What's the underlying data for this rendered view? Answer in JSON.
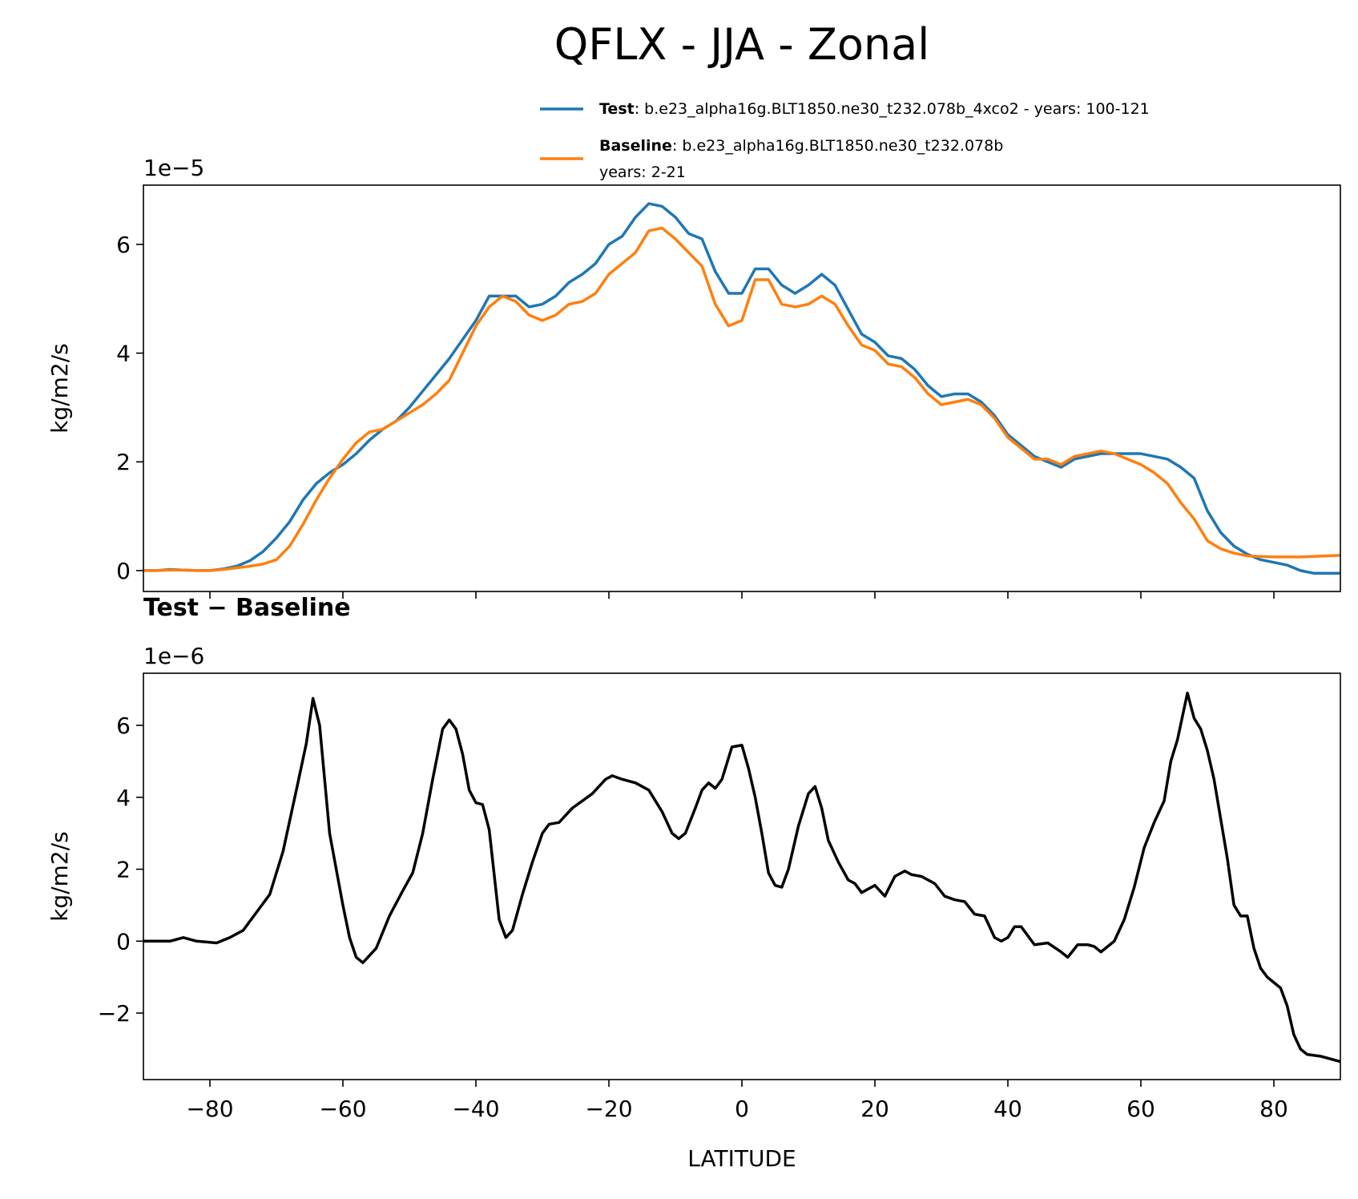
{
  "title": "QFLX - JJA - Zonal",
  "chart_data": [
    {
      "type": "line",
      "ylabel": "kg/m2/s",
      "y_offset_text": "1e−5",
      "xlim": [
        -90,
        90
      ],
      "xticks": [
        {
          "value": -80,
          "label": "−80"
        },
        {
          "value": -60,
          "label": "−60"
        },
        {
          "value": -40,
          "label": "−40"
        },
        {
          "value": -20,
          "label": "−20"
        },
        0,
        20,
        40,
        60,
        80
      ],
      "show_xtick_labels": false,
      "ylim": [
        -0.385,
        7.09
      ],
      "yticks": [
        0,
        2,
        4,
        6
      ],
      "legend": "above-right",
      "x": [
        -90,
        -88,
        -86,
        -84,
        -82,
        -80,
        -78,
        -76,
        -74,
        -72,
        -70,
        -68,
        -66,
        -64,
        -62,
        -60,
        -58,
        -56,
        -54,
        -52,
        -50,
        -48,
        -46,
        -44,
        -42,
        -40,
        -38,
        -36,
        -34,
        -32,
        -30,
        -28,
        -26,
        -24,
        -22,
        -20,
        -18,
        -16,
        -14,
        -12,
        -10,
        -8,
        -6,
        -4,
        -2,
        0,
        2,
        4,
        6,
        8,
        10,
        12,
        14,
        16,
        18,
        20,
        22,
        24,
        26,
        28,
        30,
        32,
        34,
        36,
        38,
        40,
        42,
        44,
        46,
        48,
        50,
        52,
        54,
        56,
        58,
        60,
        62,
        64,
        66,
        68,
        70,
        72,
        74,
        76,
        78,
        80,
        82,
        84,
        86,
        88,
        90
      ],
      "series": [
        {
          "name": "Test",
          "color": "#1f77b4",
          "label_lines": [
            ": b.e23_alpha16g.BLT1850.ne30_t232.078b_4xco2 - years: 100-121"
          ],
          "values": [
            0,
            0,
            0.02,
            0.01,
            0,
            0,
            0.03,
            0.08,
            0.18,
            0.35,
            0.6,
            0.9,
            1.3,
            1.6,
            1.8,
            1.95,
            2.15,
            2.4,
            2.6,
            2.75,
            3.0,
            3.3,
            3.6,
            3.9,
            4.25,
            4.6,
            5.05,
            5.05,
            5.05,
            4.85,
            4.9,
            5.05,
            5.3,
            5.45,
            5.65,
            6.0,
            6.15,
            6.5,
            6.75,
            6.7,
            6.5,
            6.2,
            6.1,
            5.5,
            5.1,
            5.1,
            5.55,
            5.55,
            5.25,
            5.1,
            5.25,
            5.45,
            5.25,
            4.8,
            4.35,
            4.2,
            3.95,
            3.9,
            3.7,
            3.4,
            3.2,
            3.25,
            3.25,
            3.1,
            2.85,
            2.5,
            2.3,
            2.1,
            2.0,
            1.9,
            2.05,
            2.1,
            2.15,
            2.15,
            2.15,
            2.15,
            2.1,
            2.05,
            1.9,
            1.7,
            1.1,
            0.7,
            0.45,
            0.3,
            0.2,
            0.15,
            0.1,
            0.0,
            -0.05,
            -0.05,
            -0.05
          ]
        },
        {
          "name": "Baseline",
          "color": "#ff7f0e",
          "label_lines": [
            ": b.e23_alpha16g.BLT1850.ne30_t232.078b",
            "years: 2-21"
          ],
          "values": [
            0,
            0,
            0.01,
            0.01,
            0,
            0,
            0.02,
            0.05,
            0.08,
            0.12,
            0.2,
            0.45,
            0.85,
            1.3,
            1.7,
            2.05,
            2.35,
            2.55,
            2.6,
            2.75,
            2.9,
            3.05,
            3.25,
            3.5,
            4.0,
            4.5,
            4.85,
            5.05,
            4.95,
            4.7,
            4.6,
            4.7,
            4.9,
            4.95,
            5.1,
            5.45,
            5.65,
            5.85,
            6.25,
            6.3,
            6.1,
            5.85,
            5.6,
            4.9,
            4.5,
            4.6,
            5.35,
            5.35,
            4.9,
            4.85,
            4.9,
            5.05,
            4.9,
            4.5,
            4.15,
            4.05,
            3.8,
            3.75,
            3.55,
            3.25,
            3.05,
            3.1,
            3.15,
            3.05,
            2.8,
            2.45,
            2.25,
            2.05,
            2.05,
            1.95,
            2.1,
            2.15,
            2.2,
            2.15,
            2.05,
            1.95,
            1.8,
            1.6,
            1.25,
            0.95,
            0.55,
            0.4,
            0.32,
            0.27,
            0.26,
            0.25,
            0.25,
            0.25,
            0.26,
            0.27,
            0.28
          ]
        }
      ]
    },
    {
      "type": "line",
      "subtitle": "Test − Baseline",
      "ylabel": "kg/m2/s",
      "y_offset_text": "1e−6",
      "xlabel": "LATITUDE",
      "xlim": [
        -90,
        90
      ],
      "xticks": [
        {
          "value": -80,
          "label": "−80"
        },
        {
          "value": -60,
          "label": "−60"
        },
        {
          "value": -40,
          "label": "−40"
        },
        {
          "value": -20,
          "label": "−20"
        },
        0,
        20,
        40,
        60,
        80
      ],
      "show_xtick_labels": true,
      "ylim": [
        -3.85,
        7.45
      ],
      "yticks": [
        {
          "value": -2,
          "label": "−2"
        },
        0,
        2,
        4,
        6
      ],
      "x": [
        -90,
        -86,
        -84,
        -82,
        -79,
        -77,
        -75,
        -73,
        -71,
        -69,
        -67,
        -65.5,
        -64.5,
        -63.5,
        -62,
        -60,
        -59,
        -58,
        -57,
        -55,
        -53,
        -51,
        -49.5,
        -48,
        -46.5,
        -45,
        -44,
        -43,
        -42,
        -41,
        -40,
        -39,
        -38,
        -36.5,
        -35.5,
        -34.5,
        -33,
        -31.5,
        -30,
        -29,
        -27.5,
        -25.5,
        -24,
        -22.5,
        -20.5,
        -19.5,
        -18,
        -16,
        -14,
        -13,
        -12,
        -10.5,
        -9.5,
        -8.5,
        -7,
        -6,
        -5,
        -4,
        -3,
        -1.5,
        0,
        1,
        2,
        3,
        4,
        5,
        6,
        7,
        8.5,
        10,
        11,
        12,
        13,
        14.5,
        16,
        17,
        18,
        20,
        21.5,
        23,
        24.5,
        25.5,
        27,
        29,
        30.5,
        32,
        33.5,
        35,
        36.5,
        38,
        39,
        40,
        41,
        42,
        44,
        46,
        48,
        49,
        50.5,
        52,
        53,
        54,
        55,
        56,
        57.5,
        59,
        60.5,
        62,
        63.5,
        64.5,
        65.5,
        67,
        68,
        69,
        70,
        71,
        72,
        73,
        74,
        75,
        76,
        77,
        78,
        79,
        80,
        81,
        82,
        83,
        84,
        85,
        87,
        88,
        90
      ],
      "series": [
        {
          "color": "#000000",
          "values": [
            0,
            0,
            0.1,
            0,
            -0.05,
            0.1,
            0.3,
            0.8,
            1.3,
            2.5,
            4.2,
            5.5,
            6.75,
            6.0,
            3.0,
            1.0,
            0.1,
            -0.45,
            -0.6,
            -0.2,
            0.7,
            1.4,
            1.9,
            3.0,
            4.5,
            5.9,
            6.15,
            5.9,
            5.2,
            4.2,
            3.85,
            3.8,
            3.1,
            0.6,
            0.1,
            0.3,
            1.3,
            2.2,
            3.0,
            3.25,
            3.3,
            3.7,
            3.9,
            4.1,
            4.5,
            4.6,
            4.5,
            4.4,
            4.2,
            3.9,
            3.6,
            3.0,
            2.85,
            3.0,
            3.7,
            4.2,
            4.4,
            4.25,
            4.5,
            5.4,
            5.45,
            4.8,
            4.0,
            3.0,
            1.9,
            1.55,
            1.5,
            2.0,
            3.2,
            4.1,
            4.3,
            3.7,
            2.8,
            2.2,
            1.7,
            1.6,
            1.35,
            1.55,
            1.25,
            1.8,
            1.95,
            1.85,
            1.8,
            1.6,
            1.25,
            1.15,
            1.1,
            0.75,
            0.7,
            0.1,
            0.0,
            0.1,
            0.4,
            0.4,
            -0.1,
            -0.05,
            -0.3,
            -0.45,
            -0.1,
            -0.1,
            -0.15,
            -0.3,
            -0.15,
            0.0,
            0.6,
            1.5,
            2.6,
            3.3,
            3.9,
            5.0,
            5.6,
            6.9,
            6.2,
            5.9,
            5.3,
            4.5,
            3.4,
            2.3,
            1.0,
            0.7,
            0.7,
            -0.2,
            -0.75,
            -1.0,
            -1.15,
            -1.3,
            -1.8,
            -2.6,
            -3.0,
            -3.15,
            -3.2,
            -3.25,
            -3.35
          ]
        }
      ]
    }
  ]
}
